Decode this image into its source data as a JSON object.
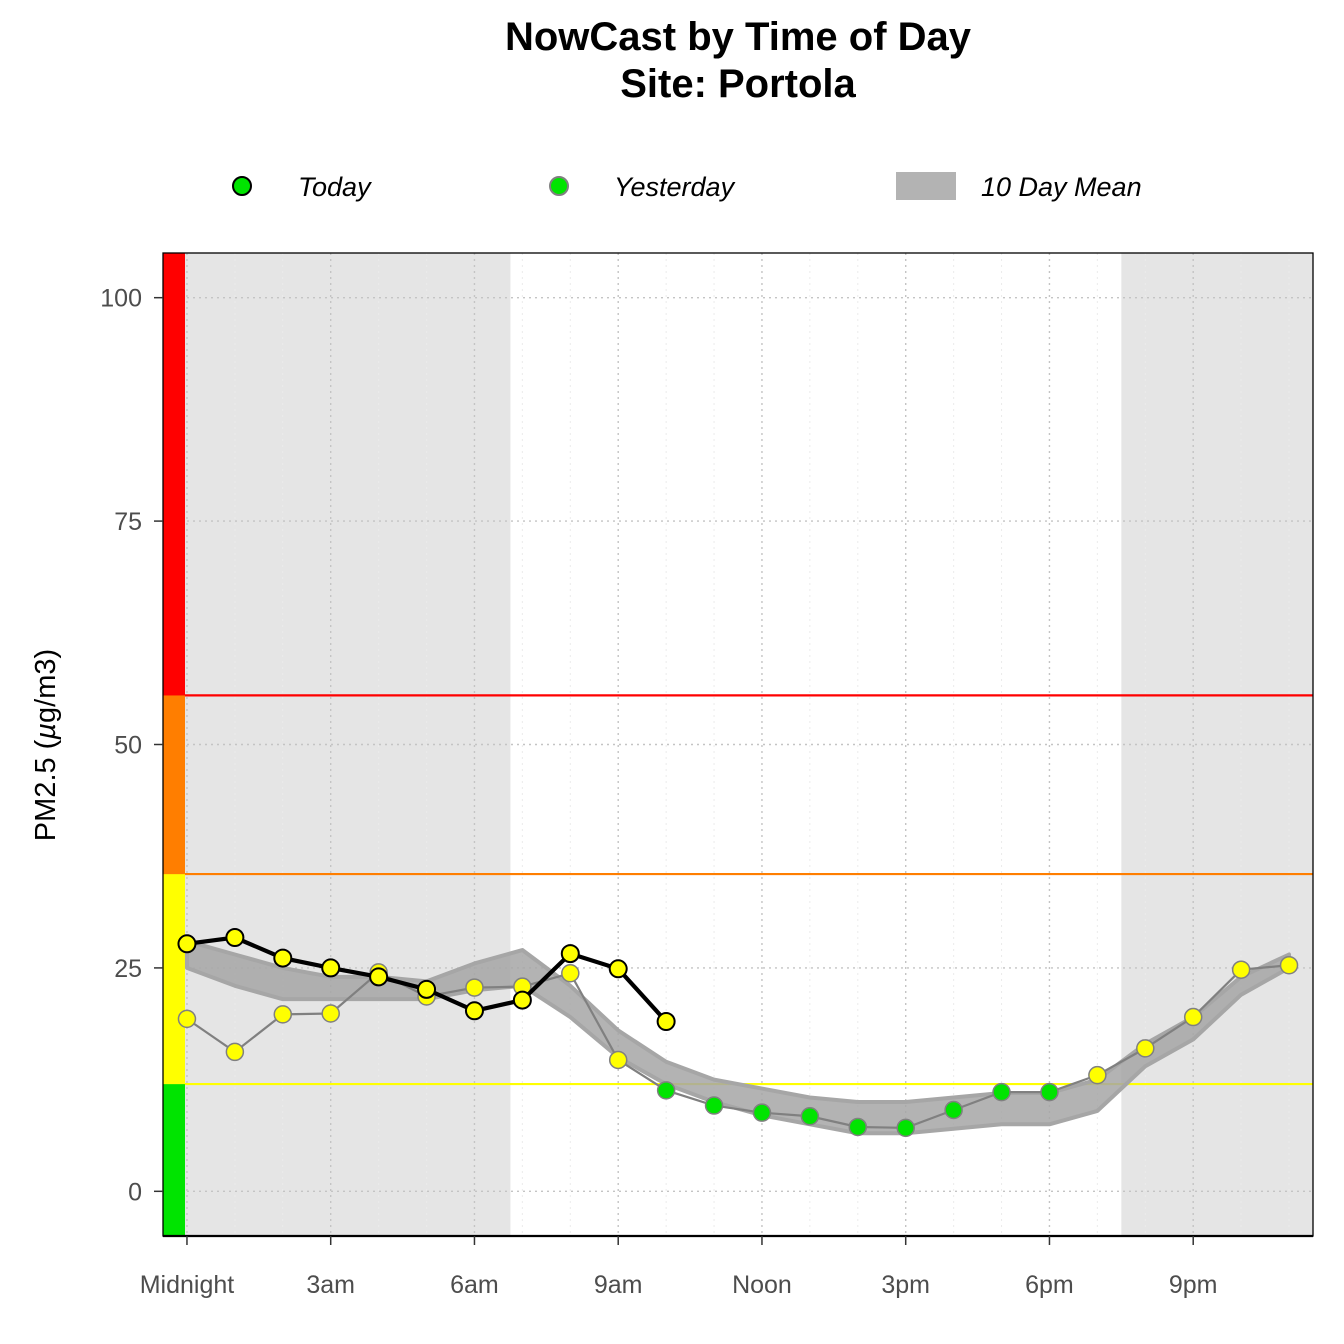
{
  "chart_data": {
    "type": "line",
    "title": "NowCast by Time of Day",
    "subtitle": "Site: Portola",
    "xlabel": "",
    "ylabel": "PM2.5 (µg/m3)",
    "ylabel_prefix": "PM2.5 (",
    "ylabel_mu": "µ",
    "ylabel_suffix": "g/m3)",
    "xlim": [
      -0.5,
      23.5
    ],
    "ylim": [
      -5,
      105
    ],
    "x_ticks": [
      {
        "value": 0,
        "label": "Midnight"
      },
      {
        "value": 3,
        "label": "3am"
      },
      {
        "value": 6,
        "label": "6am"
      },
      {
        "value": 9,
        "label": "9am"
      },
      {
        "value": 12,
        "label": "Noon"
      },
      {
        "value": 15,
        "label": "3pm"
      },
      {
        "value": 18,
        "label": "6pm"
      },
      {
        "value": 21,
        "label": "9pm"
      }
    ],
    "y_ticks": [
      0,
      25,
      50,
      75,
      100
    ],
    "grid": "dotted",
    "legend": [
      {
        "label": "Today",
        "symbol": "point-black-outline",
        "color": "#00e400"
      },
      {
        "label": "Yesterday",
        "symbol": "point-gray-outline",
        "color": "#00e400"
      },
      {
        "label": "10 Day Mean",
        "symbol": "band",
        "color": "#b3b3b3"
      }
    ],
    "night_shading": [
      {
        "from": -0.5,
        "to": 6.75
      },
      {
        "from": 19.5,
        "to": 23.5
      }
    ],
    "aqi_thresholds": [
      {
        "value": 12,
        "color": "#ffff00"
      },
      {
        "value": 35.5,
        "color": "#ff7e00"
      },
      {
        "value": 55.5,
        "color": "#ff0000"
      }
    ],
    "aqi_bands": [
      {
        "from": -5,
        "to": 12,
        "color": "#00e400"
      },
      {
        "from": 12,
        "to": 35.5,
        "color": "#ffff00"
      },
      {
        "from": 35.5,
        "to": 55.5,
        "color": "#ff7e00"
      },
      {
        "from": 55.5,
        "to": 105,
        "color": "#ff0000"
      }
    ],
    "series": [
      {
        "name": "10 Day Mean",
        "type": "band",
        "color": "#a6a6a6",
        "x": [
          0,
          1,
          2,
          3,
          4,
          5,
          6,
          7,
          8,
          9,
          10,
          11,
          12,
          13,
          14,
          15,
          16,
          17,
          18,
          19,
          20,
          21,
          22,
          23
        ],
        "lower": [
          25,
          23,
          21.5,
          21.5,
          21.5,
          21.5,
          22.5,
          23,
          19.5,
          15,
          12,
          10,
          8.5,
          7.5,
          6.5,
          6.5,
          7,
          7.5,
          7.5,
          9,
          14,
          17,
          22,
          25
        ],
        "upper": [
          28,
          26.5,
          25,
          24,
          24,
          23.5,
          25.5,
          27,
          23,
          18,
          14.5,
          12.5,
          11.5,
          10.5,
          10,
          10,
          10.5,
          11,
          11,
          12.5,
          16.5,
          19.5,
          24,
          26.5
        ]
      },
      {
        "name": "Yesterday",
        "type": "line",
        "line_color": "#808080",
        "x": [
          0,
          1,
          2,
          3,
          4,
          5,
          6,
          7,
          8,
          9,
          10,
          11,
          12,
          13,
          14,
          15,
          16,
          17,
          18,
          19,
          20,
          21,
          22,
          23
        ],
        "values": [
          19.3,
          15.6,
          19.8,
          19.9,
          24.5,
          21.8,
          22.8,
          22.9,
          24.4,
          14.7,
          11.3,
          9.6,
          8.8,
          8.4,
          7.2,
          7.1,
          9.1,
          11.1,
          11.1,
          13.0,
          16.0,
          19.5,
          24.8,
          25.3
        ]
      },
      {
        "name": "Today",
        "type": "line",
        "line_color": "#000000",
        "x": [
          0,
          1,
          2,
          3,
          4,
          5,
          6,
          7,
          8,
          9,
          10
        ],
        "values": [
          27.7,
          28.4,
          26.1,
          25.0,
          24.0,
          22.6,
          20.2,
          21.4,
          26.6,
          24.9,
          19.0
        ]
      }
    ]
  }
}
